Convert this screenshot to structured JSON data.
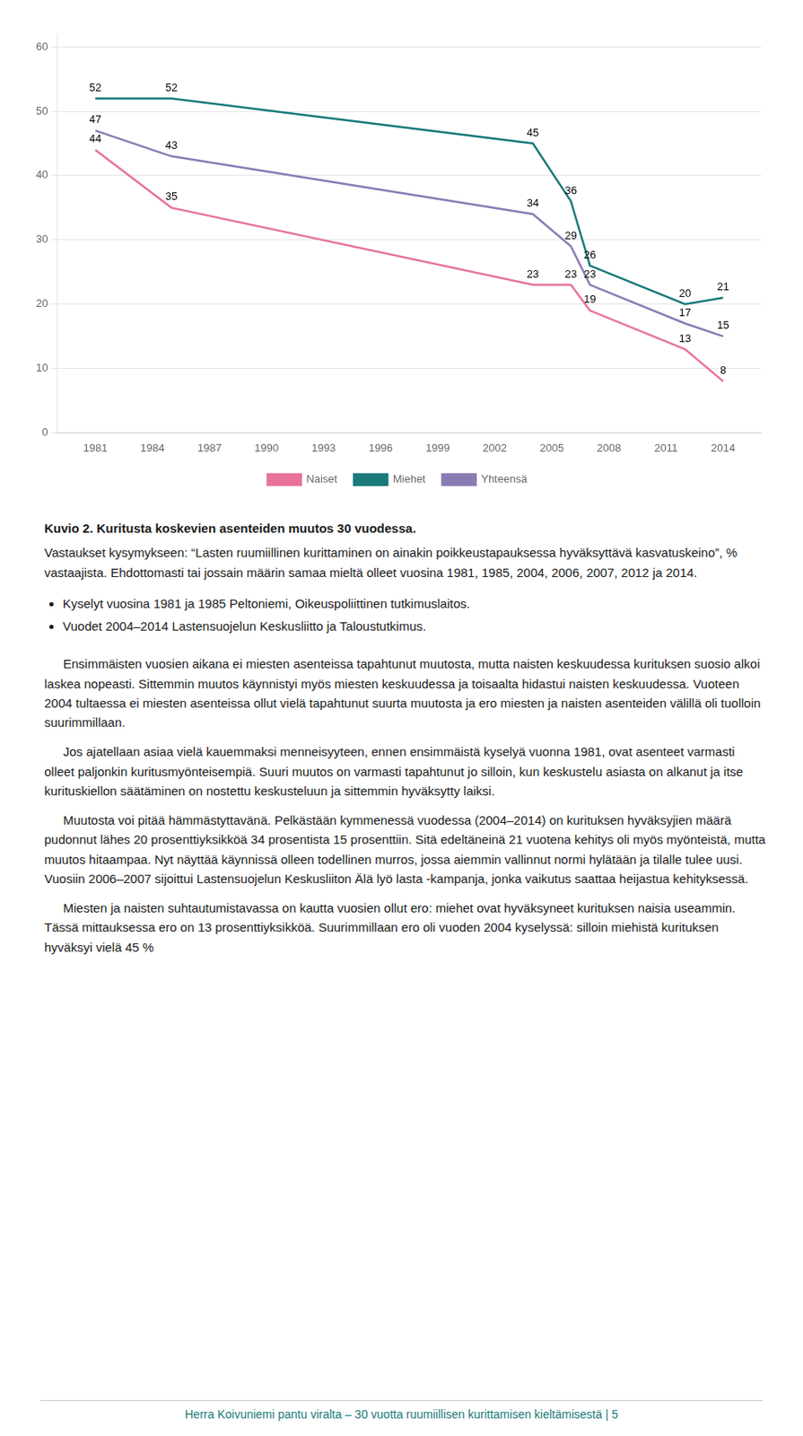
{
  "chart_data": {
    "type": "line",
    "x": [
      1981,
      1985,
      2004,
      2006,
      2007,
      2012,
      2014
    ],
    "series": [
      {
        "name": "Naiset",
        "color": "#E8739A",
        "values": [
          44,
          35,
          23,
          23,
          19,
          13,
          8
        ]
      },
      {
        "name": "Miehet",
        "color": "#1A7A7A",
        "values": [
          52,
          52,
          45,
          36,
          26,
          20,
          21
        ]
      },
      {
        "name": "Yhteensä",
        "color": "#8B7BB5",
        "values": [
          47,
          43,
          34,
          29,
          23,
          17,
          15
        ]
      }
    ],
    "xlim": [
      1979,
      2016
    ],
    "xticks": [
      1981,
      1984,
      1987,
      1990,
      1993,
      1996,
      1999,
      2002,
      2005,
      2008,
      2011,
      2014
    ],
    "ylim": [
      0,
      62
    ],
    "yticks": [
      0,
      10,
      20,
      30,
      40,
      50,
      60
    ],
    "grid": "y",
    "legend": "bottom",
    "data_labels": true
  },
  "caption": "Kuvio 2. Kuritusta koskevien asenteiden muutos 30 vuodessa.",
  "caption_text": "Vastaukset kysymykseen: “Lasten ruumiillinen kurittaminen on ainakin poikkeustapauksessa hyväksyttävä kasvatuskeino”, % vastaajista. Ehdottomasti tai jossain määrin samaa mieltä olleet vuosina 1981, 1985, 2004, 2006, 2007, 2012 ja 2014.",
  "bullets": [
    "Kyselyt vuosina 1981 ja 1985 Peltoniemi, Oikeuspoliittinen tutkimuslaitos.",
    "Vuodet 2004–2014 Lastensuojelun Keskusliitto ja Taloustutkimus."
  ],
  "paragraphs": [
    "Ensimmäisten vuosien aikana ei miesten asenteissa tapahtunut muutosta, mutta naisten keskuudessa kurituksen suosio alkoi laskea nopeasti. Sittemmin muutos käynnistyi myös miesten keskuudessa ja toisaalta hidastui naisten keskuudessa. Vuoteen 2004 tultaessa ei miesten asenteissa ollut vielä tapahtunut suurta muutosta ja ero miesten ja naisten asenteiden välillä oli tuolloin suurimmillaan.",
    "Jos ajatellaan asiaa vielä kauemmaksi menneisyyteen, ennen ensimmäistä kyselуä vuonna 1981, ovat asenteet varmasti olleet paljonkin kuritusmyönteisempiä. Suuri muutos on varmasti tapahtunut jo silloin, kun keskustelu asiasta on alkanut ja itse kurituskiellon säätäminen on nostettu keskusteluun ja sittemmin hyväksytty laiksi.",
    "Muutosta voi pitää hämmästyttavänä. Pelkästään kymmenessä vuodessa (2004–2014) on kurituksen hyväksyjien määrä pudonnut lähes 20 prosenttiyksikköä 34 prosentista 15 prosenttiin. Sitä edeltäneinä 21 vuotena kehitys oli myös myönteistä, mutta muutos hitaampaa. Nyt näyttää käynnissä olleen todellinen murros, jossa aiemmin vallinnut normi hylätään ja tilalle tulee uusi. Vuosiin 2006–2007 sijoittui Lastensuojelun Keskusliiton Älä lyö lasta -kampanja, jonka vaikutus saattaa heijastua kehityksessä.",
    "Miesten ja naisten suhtautumistavassa on kautta vuosien ollut ero: miehet ovat hyväksyneet kurituksen naisia useammin. Tässä mittauksessa ero on 13 prosenttiyksikköä. Suurimmillaan ero oli vuoden 2004 kyselyssä: silloin miehistä kurituksen hyväksyi vielä 45 %"
  ],
  "footer": "Herra Koivuniemi pantu viralta – 30 vuotta ruumiillisen kurittamisen kieltämisestä | 5"
}
